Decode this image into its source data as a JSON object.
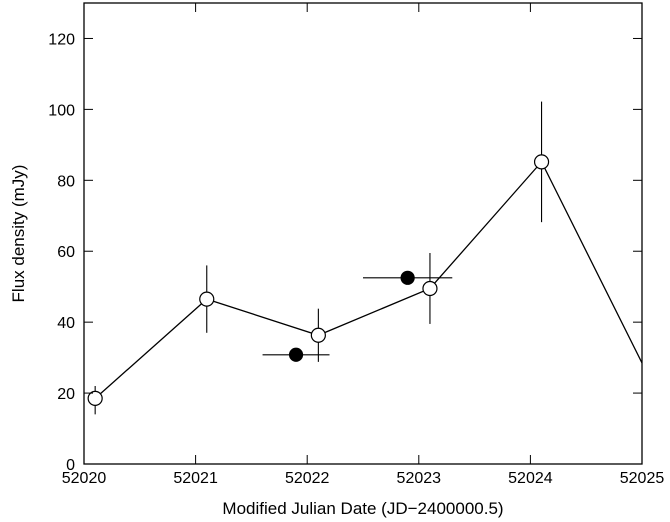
{
  "chart_data": {
    "type": "scatter",
    "title": "",
    "xlabel": "Modified Julian Date (JD−2400000.5)",
    "ylabel": "Flux density (mJy)",
    "xlim": [
      52020,
      52025
    ],
    "ylim": [
      0,
      130
    ],
    "x_ticks": [
      52020,
      52021,
      52022,
      52023,
      52024,
      52025
    ],
    "y_ticks": [
      0,
      20,
      40,
      60,
      80,
      100,
      120
    ],
    "grid": false,
    "legend": "none",
    "series": [
      {
        "marker": "open-circle",
        "connected": true,
        "color": "#000000",
        "points": [
          {
            "x": 52020.1,
            "y": 18.5,
            "yerr": [
              4.5,
              3.5
            ],
            "xerr": 0.05
          },
          {
            "x": 52021.1,
            "y": 46.5,
            "yerr": [
              9.5,
              9.5
            ],
            "xerr": 0.0
          },
          {
            "x": 52022.1,
            "y": 36.3,
            "yerr": [
              7.5,
              7.5
            ],
            "xerr": 0.0
          },
          {
            "x": 52023.1,
            "y": 49.5,
            "yerr": [
              10.0,
              10.0
            ],
            "xerr": 0.0
          },
          {
            "x": 52024.1,
            "y": 85.2,
            "yerr": [
              17.0,
              17.0
            ],
            "xerr": 0.0
          },
          {
            "x": 52025.0,
            "y": 28.5,
            "yerr": [
              0,
              0
            ],
            "xerr": 0.0,
            "marker_hidden": true
          }
        ]
      },
      {
        "marker": "filled-circle",
        "connected": false,
        "color": "#000000",
        "points": [
          {
            "x": 52021.9,
            "y": 30.8,
            "yerr": [
              0,
              0
            ],
            "xerr": 0.3
          },
          {
            "x": 52022.9,
            "y": 52.5,
            "yerr": [
              0,
              0
            ],
            "xerr": 0.4
          }
        ]
      }
    ]
  }
}
